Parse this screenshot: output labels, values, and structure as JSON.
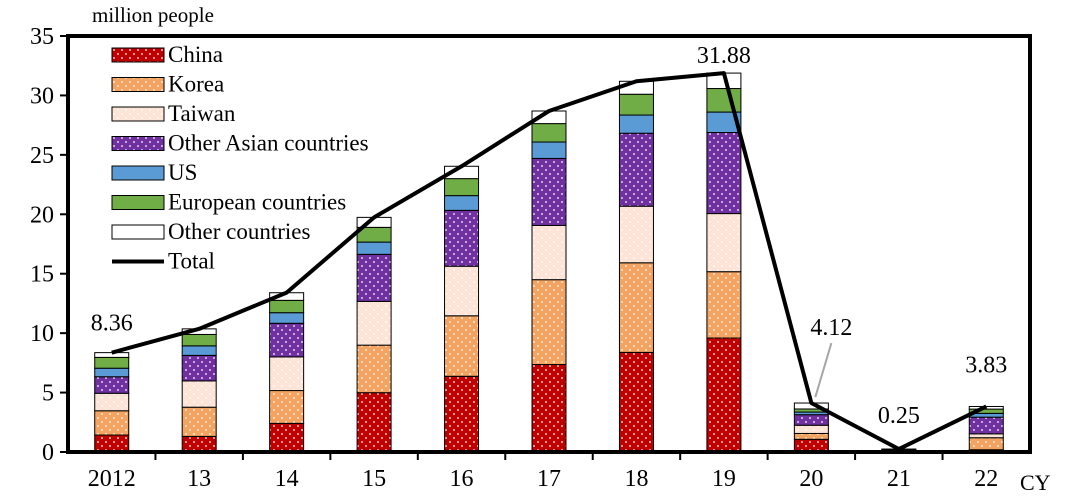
{
  "chart_data": {
    "type": "bar",
    "stacked": true,
    "ylabel": "million people",
    "xlabel": "CY",
    "ylim": [
      0,
      35
    ],
    "yticks": [
      0,
      5,
      10,
      15,
      20,
      25,
      30,
      35
    ],
    "categories": [
      "2012",
      "13",
      "14",
      "15",
      "16",
      "17",
      "18",
      "19",
      "20",
      "21",
      "22"
    ],
    "series": [
      {
        "name": "China",
        "color": "#c00000",
        "pattern": "dots",
        "values": [
          1.43,
          1.31,
          2.41,
          4.99,
          6.37,
          7.36,
          8.38,
          9.59,
          1.07,
          0.04,
          0.19
        ]
      },
      {
        "name": "Korea",
        "color": "#f4a460",
        "pattern": "dots",
        "values": [
          2.04,
          2.46,
          2.76,
          4.0,
          5.09,
          7.14,
          7.54,
          5.58,
          0.49,
          0.02,
          1.01
        ]
      },
      {
        "name": "Taiwan",
        "color": "#fde4d6",
        "pattern": "dots",
        "values": [
          1.47,
          2.21,
          2.83,
          3.68,
          4.17,
          4.56,
          4.76,
          4.89,
          0.69,
          0.01,
          0.33
        ]
      },
      {
        "name": "Other Asian countries",
        "color": "#7030a0",
        "pattern": "dots",
        "values": [
          1.39,
          2.15,
          2.83,
          3.96,
          4.7,
          5.64,
          6.14,
          6.82,
          0.89,
          0.06,
          1.4
        ]
      },
      {
        "name": "US",
        "color": "#5b9bd5",
        "pattern": "solid",
        "values": [
          0.72,
          0.8,
          0.89,
          1.03,
          1.24,
          1.38,
          1.53,
          1.72,
          0.22,
          0.02,
          0.32
        ]
      },
      {
        "name": "European countries",
        "color": "#70ad47",
        "pattern": "solid",
        "values": [
          0.91,
          0.96,
          1.04,
          1.24,
          1.43,
          1.55,
          1.75,
          1.98,
          0.26,
          0.05,
          0.36
        ]
      },
      {
        "name": "Other countries",
        "color": "#ffffff",
        "pattern": "solid",
        "values": [
          0.4,
          0.47,
          0.64,
          0.84,
          1.04,
          1.06,
          1.09,
          1.3,
          0.5,
          0.05,
          0.22
        ]
      }
    ],
    "total": {
      "name": "Total",
      "values": [
        8.36,
        10.36,
        13.41,
        19.74,
        24.04,
        28.69,
        31.19,
        31.88,
        4.12,
        0.25,
        3.83
      ]
    },
    "annotations": [
      {
        "category": "2012",
        "text": "8.36"
      },
      {
        "category": "19",
        "text": "31.88"
      },
      {
        "category": "20",
        "text": "4.12"
      },
      {
        "category": "21",
        "text": "0.25"
      },
      {
        "category": "22",
        "text": "3.83"
      }
    ],
    "legend": "top-left",
    "grid": false
  }
}
